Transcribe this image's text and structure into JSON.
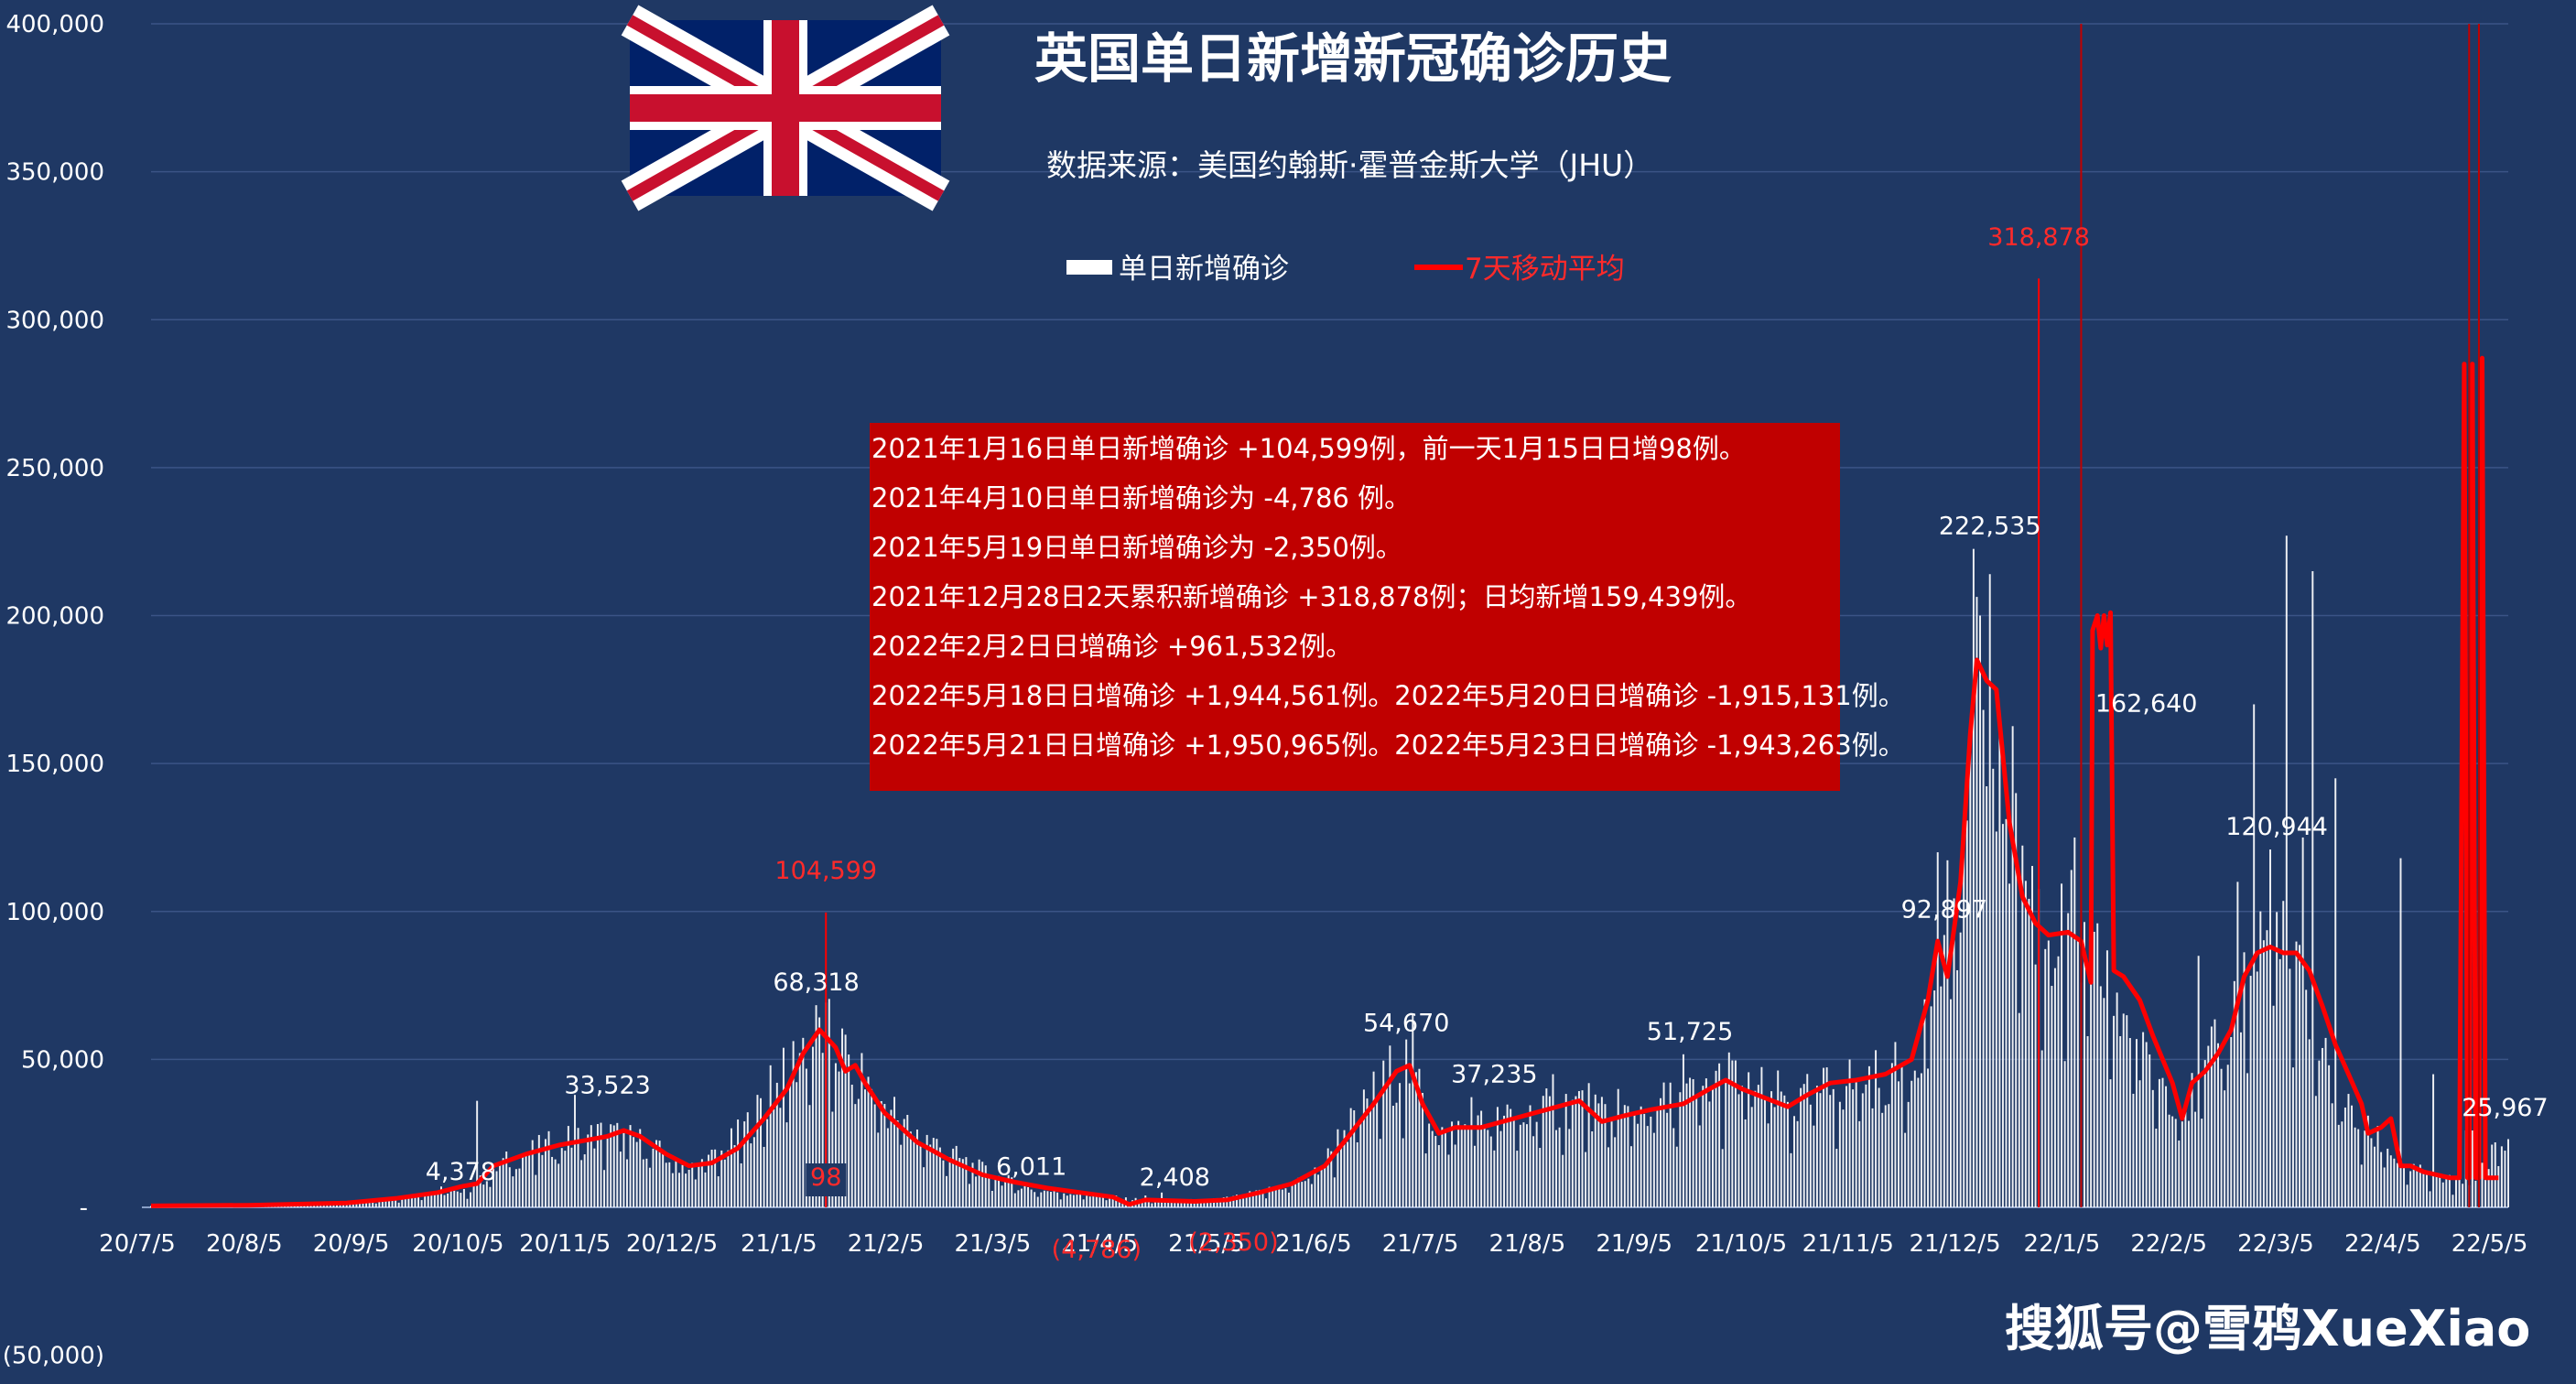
{
  "chart_data": {
    "type": "bar",
    "title": "英国单日新增新冠确诊历史",
    "subtitle": "数据来源：美国约翰斯·霍普金斯大学（JHU）",
    "ylim": [
      -50000,
      400000
    ],
    "yticks": [
      {
        "value": 400000,
        "label": "400,000"
      },
      {
        "value": 350000,
        "label": "350,000"
      },
      {
        "value": 300000,
        "label": "300,000"
      },
      {
        "value": 250000,
        "label": "250,000"
      },
      {
        "value": 200000,
        "label": "200,000"
      },
      {
        "value": 150000,
        "label": "150,000"
      },
      {
        "value": 100000,
        "label": "100,000"
      },
      {
        "value": 50000,
        "label": "50,000"
      },
      {
        "value": 0,
        "label": "-"
      },
      {
        "value": -50000,
        "label": "(50,000)"
      }
    ],
    "xticks": [
      "20/7/5",
      "20/8/5",
      "20/9/5",
      "20/10/5",
      "20/11/5",
      "20/12/5",
      "21/1/5",
      "21/2/5",
      "21/3/5",
      "21/4/5",
      "21/5/5",
      "21/6/5",
      "21/7/5",
      "21/8/5",
      "21/9/5",
      "21/10/5",
      "21/11/5",
      "21/12/5",
      "22/1/5",
      "22/2/5",
      "22/3/5",
      "22/4/5",
      "22/5/5"
    ],
    "grid": true,
    "legend_position": "top-center",
    "series": [
      {
        "name": "单日新增确诊",
        "color": "#ffffff",
        "kind": "bar",
        "keypoints": [
          [
            0,
            600
          ],
          [
            30,
            800
          ],
          [
            60,
            1500
          ],
          [
            75,
            3000
          ],
          [
            90,
            6000
          ],
          [
            95,
            4378
          ],
          [
            100,
            8000
          ],
          [
            108,
            15000
          ],
          [
            115,
            18000
          ],
          [
            125,
            22000
          ],
          [
            135,
            24000
          ],
          [
            140,
            25000
          ],
          [
            150,
            22000
          ],
          [
            160,
            16000
          ],
          [
            165,
            13000
          ],
          [
            175,
            18000
          ],
          [
            185,
            30000
          ],
          [
            190,
            38000
          ],
          [
            195,
            45000
          ],
          [
            200,
            55000
          ],
          [
            205,
            60000
          ],
          [
            210,
            55000
          ],
          [
            215,
            48000
          ],
          [
            225,
            35000
          ],
          [
            235,
            25000
          ],
          [
            250,
            15000
          ],
          [
            260,
            10000
          ],
          [
            270,
            6011
          ],
          [
            280,
            5000
          ],
          [
            290,
            4000
          ],
          [
            300,
            2700
          ],
          [
            310,
            2400
          ],
          [
            320,
            2300
          ],
          [
            330,
            3000
          ],
          [
            340,
            5000
          ],
          [
            350,
            8000
          ],
          [
            355,
            10000
          ],
          [
            360,
            15000
          ],
          [
            365,
            25000
          ],
          [
            370,
            30000
          ],
          [
            375,
            38000
          ],
          [
            380,
            44000
          ],
          [
            385,
            49000
          ],
          [
            390,
            38000
          ],
          [
            395,
            25000
          ],
          [
            400,
            26000
          ],
          [
            410,
            28000
          ],
          [
            420,
            30000
          ],
          [
            430,
            33000
          ],
          [
            440,
            36000
          ],
          [
            445,
            30000
          ],
          [
            450,
            30000
          ],
          [
            460,
            34000
          ],
          [
            470,
            36000
          ],
          [
            480,
            42000
          ],
          [
            485,
            44000
          ],
          [
            490,
            40000
          ],
          [
            500,
            37000
          ],
          [
            505,
            34000
          ],
          [
            510,
            38000
          ],
          [
            520,
            42000
          ],
          [
            530,
            44000
          ],
          [
            535,
            45000
          ],
          [
            540,
            46000
          ],
          [
            545,
            70000
          ],
          [
            550,
            90000
          ],
          [
            555,
            110000
          ],
          [
            558,
            150000
          ],
          [
            561,
            175000
          ],
          [
            564,
            180000
          ],
          [
            567,
            165000
          ],
          [
            570,
            140000
          ],
          [
            575,
            110000
          ],
          [
            580,
            95000
          ],
          [
            585,
            90000
          ],
          [
            590,
            92000
          ],
          [
            595,
            80000
          ],
          [
            600,
            80000
          ],
          [
            603,
            60000
          ],
          [
            606,
            70000
          ],
          [
            610,
            50000
          ],
          [
            615,
            45000
          ],
          [
            620,
            40000
          ],
          [
            625,
            35000
          ],
          [
            630,
            45000
          ],
          [
            635,
            55000
          ],
          [
            640,
            70000
          ],
          [
            645,
            85000
          ],
          [
            648,
            90000
          ],
          [
            652,
            88000
          ],
          [
            656,
            82000
          ],
          [
            660,
            70000
          ],
          [
            665,
            55000
          ],
          [
            670,
            40000
          ],
          [
            675,
            30000
          ],
          [
            680,
            25000
          ],
          [
            685,
            22000
          ],
          [
            690,
            15000
          ],
          [
            695,
            12000
          ],
          [
            700,
            10000
          ],
          [
            705,
            9000
          ],
          [
            710,
            8000
          ],
          [
            715,
            15000
          ],
          [
            720,
            20000
          ]
        ],
        "spikes": [
          [
            100,
            36000
          ],
          [
            130,
            38000
          ],
          [
            190,
            48000
          ],
          [
            204,
            68318
          ],
          [
            270,
            6011
          ],
          [
            305,
            4000
          ],
          [
            310,
            5000
          ],
          [
            380,
            54670
          ],
          [
            387,
            65000
          ],
          [
            405,
            37235
          ],
          [
            430,
            45000
          ],
          [
            450,
            40000
          ],
          [
            470,
            51725
          ],
          [
            548,
            120000
          ],
          [
            555,
            92897
          ],
          [
            559,
            222535
          ],
          [
            561,
            200000
          ],
          [
            572,
            140000
          ],
          [
            590,
            125000
          ],
          [
            595,
            120000
          ],
          [
            628,
            85000
          ],
          [
            640,
            110000
          ],
          [
            645,
            170000
          ],
          [
            650,
            120944
          ],
          [
            655,
            227000
          ],
          [
            660,
            125000
          ],
          [
            663,
            215000
          ],
          [
            670,
            145000
          ],
          [
            690,
            118000
          ],
          [
            700,
            45000
          ],
          [
            710,
            26000
          ],
          [
            712,
            25967
          ]
        ],
        "annotations": [
          {
            "i": 95,
            "v": 4378,
            "text": "4,378"
          },
          {
            "i": 140,
            "v": 33523,
            "text": "33,523"
          },
          {
            "i": 204,
            "v": 68318,
            "text": "68,318"
          },
          {
            "i": 270,
            "v": 6011,
            "text": "6,011"
          },
          {
            "i": 314,
            "v": 2408,
            "text": "2,408"
          },
          {
            "i": 385,
            "v": 54670,
            "text": "54,670"
          },
          {
            "i": 412,
            "v": 37235,
            "text": "37,235"
          },
          {
            "i": 472,
            "v": 51725,
            "text": "51,725"
          },
          {
            "i": 550,
            "v": 92897,
            "text": "92,897"
          },
          {
            "i": 564,
            "v": 222535,
            "text": "222,535"
          },
          {
            "i": 612,
            "v": 162640,
            "text": "162,640"
          },
          {
            "i": 652,
            "v": 120944,
            "text": "120,944"
          },
          {
            "i": 722,
            "v": 25967,
            "text": "25,967"
          }
        ]
      },
      {
        "name": "7天移动平均",
        "color": "#ff0000",
        "kind": "line",
        "points": [
          [
            0,
            500
          ],
          [
            30,
            700
          ],
          [
            60,
            1500
          ],
          [
            75,
            3000
          ],
          [
            88,
            5000
          ],
          [
            95,
            7000
          ],
          [
            100,
            8000
          ],
          [
            105,
            14000
          ],
          [
            110,
            16000
          ],
          [
            115,
            18000
          ],
          [
            125,
            21000
          ],
          [
            135,
            23000
          ],
          [
            140,
            24000
          ],
          [
            145,
            26000
          ],
          [
            150,
            24000
          ],
          [
            158,
            18000
          ],
          [
            165,
            14000
          ],
          [
            172,
            15000
          ],
          [
            180,
            20000
          ],
          [
            188,
            30000
          ],
          [
            195,
            40000
          ],
          [
            200,
            52000
          ],
          [
            205,
            60000
          ],
          [
            210,
            54000
          ],
          [
            213,
            46000
          ],
          [
            216,
            48000
          ],
          [
            219,
            42000
          ],
          [
            225,
            32000
          ],
          [
            235,
            22000
          ],
          [
            245,
            16000
          ],
          [
            255,
            11000
          ],
          [
            265,
            8500
          ],
          [
            275,
            6500
          ],
          [
            285,
            5000
          ],
          [
            295,
            3500
          ],
          [
            300,
            1000
          ],
          [
            305,
            2500
          ],
          [
            312,
            2300
          ],
          [
            320,
            2000
          ],
          [
            330,
            2500
          ],
          [
            340,
            5000
          ],
          [
            350,
            8000
          ],
          [
            360,
            14000
          ],
          [
            368,
            25000
          ],
          [
            375,
            35000
          ],
          [
            382,
            46000
          ],
          [
            386,
            48000
          ],
          [
            390,
            35000
          ],
          [
            395,
            25000
          ],
          [
            400,
            27000
          ],
          [
            408,
            27000
          ],
          [
            418,
            30000
          ],
          [
            428,
            33000
          ],
          [
            438,
            36000
          ],
          [
            445,
            29000
          ],
          [
            452,
            31000
          ],
          [
            460,
            33000
          ],
          [
            470,
            35000
          ],
          [
            478,
            40000
          ],
          [
            483,
            43000
          ],
          [
            488,
            40000
          ],
          [
            495,
            37000
          ],
          [
            502,
            34000
          ],
          [
            508,
            38000
          ],
          [
            515,
            42000
          ],
          [
            523,
            43000
          ],
          [
            532,
            45000
          ],
          [
            540,
            50000
          ],
          [
            545,
            70000
          ],
          [
            548,
            90000
          ],
          [
            551,
            78000
          ],
          [
            555,
            110000
          ],
          [
            558,
            160000
          ],
          [
            560,
            185000
          ],
          [
            563,
            178000
          ],
          [
            566,
            175000
          ],
          [
            570,
            130000
          ],
          [
            574,
            105000
          ],
          [
            578,
            96000
          ],
          [
            582,
            92000
          ],
          [
            588,
            93000
          ],
          [
            592,
            90000
          ],
          [
            595,
            76000
          ],
          [
            595.5,
            195000
          ],
          [
            597,
            200000
          ],
          [
            598,
            189000
          ],
          [
            599,
            200000
          ],
          [
            600,
            190000
          ],
          [
            601,
            201000
          ],
          [
            602,
            80000
          ],
          [
            605,
            78000
          ],
          [
            610,
            70000
          ],
          [
            614,
            58000
          ],
          [
            617,
            50000
          ],
          [
            620,
            42000
          ],
          [
            623,
            30000
          ],
          [
            626,
            42000
          ],
          [
            630,
            46000
          ],
          [
            634,
            52000
          ],
          [
            638,
            60000
          ],
          [
            642,
            78000
          ],
          [
            646,
            86000
          ],
          [
            650,
            88000
          ],
          [
            654,
            86000
          ],
          [
            658,
            86000
          ],
          [
            662,
            80000
          ],
          [
            666,
            68000
          ],
          [
            670,
            55000
          ],
          [
            674,
            45000
          ],
          [
            678,
            35000
          ],
          [
            680,
            25000
          ],
          [
            684,
            27000
          ],
          [
            687,
            30000
          ],
          [
            690,
            14000
          ],
          [
            693,
            14000
          ],
          [
            697,
            12000
          ],
          [
            701,
            11000
          ],
          [
            705,
            10000
          ],
          [
            708,
            10000
          ],
          [
            709.5,
            285000
          ],
          [
            710.5,
            10000
          ],
          [
            711,
            10000
          ],
          [
            712,
            285000
          ],
          [
            713,
            10000
          ],
          [
            714,
            10000
          ],
          [
            715,
            287000
          ],
          [
            716,
            10000
          ],
          [
            720,
            10000
          ]
        ],
        "annotations": [
          {
            "i": 207,
            "v": 104599,
            "text": "104,599",
            "y": -50000,
            "above": true
          },
          {
            "i": 207,
            "v": 98,
            "text": "98",
            "label_at": 8000
          },
          {
            "i": 290,
            "v": -4786,
            "text": "(4,786)"
          },
          {
            "i": 332,
            "v": -2350,
            "text": "(2,350)"
          },
          {
            "i": 579,
            "v": 318878,
            "text": "318,878"
          }
        ]
      }
    ],
    "notes": [
      "2021年1月16日单日新增确诊 +104,599例，前一天1月15日日增98例。",
      "2021年4月10日单日新增确诊为 -4,786 例。",
      "2021年5月19日单日新增确诊为 -2,350例。",
      "2021年12月28日2天累积新增确诊 +318,878例；日均新增159,439例。",
      "2022年2月2日日增确诊 +961,532例。",
      "2022年5月18日日增确诊 +1,944,561例。2022年5月20日日增确诊 -1,915,131例。",
      "2022年5月21日日增确诊 +1,950,965例。2022年5月23日日增确诊 -1,943,263例。"
    ]
  },
  "watermark": "搜狐号@雪鸦XueXiao",
  "colors": {
    "background": "#1f3864",
    "bar": "#ffffff",
    "line": "#ff0000",
    "note_box": "#c00000",
    "grid": "#3b5486"
  }
}
